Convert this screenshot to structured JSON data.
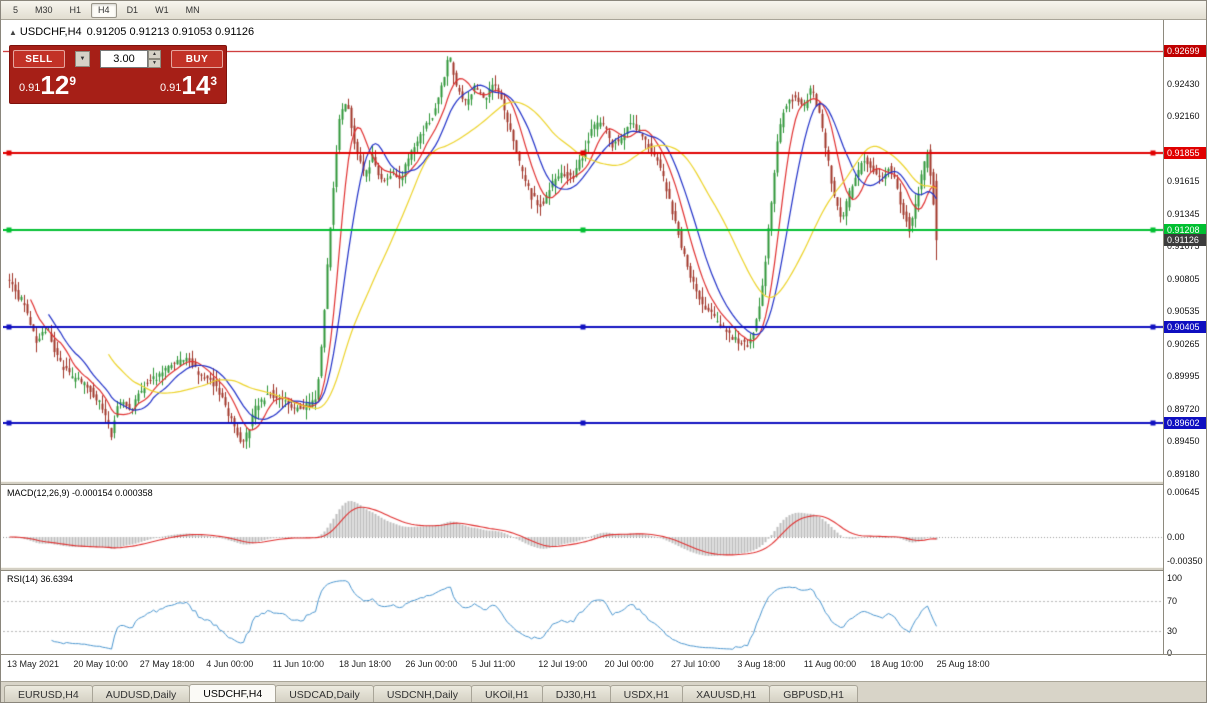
{
  "window": {
    "timeframes": [
      "5",
      "M30",
      "H1",
      "H4",
      "D1",
      "W1",
      "MN"
    ],
    "active_timeframe": "H4"
  },
  "chart": {
    "arrow": "▲",
    "symbol": "USDCHF,H4",
    "ohlc": "0.91205 0.91213 0.91053 0.91126"
  },
  "trade_panel": {
    "sell_label": "SELL",
    "buy_label": "BUY",
    "volume": "3.00",
    "dropdown_icon": "▼",
    "spin_up_icon": "▲",
    "spin_down_icon": "▼",
    "bid_prefix": "0.91",
    "bid_big": "12",
    "bid_sup": "9",
    "ask_prefix": "0.91",
    "ask_big": "14",
    "ask_sup": "3"
  },
  "chart_data": {
    "type": "candlestick",
    "symbol": "USDCHF",
    "timeframe": "H4",
    "bars": 310,
    "current_price_label": "0.91126",
    "candle_up_color": "#2f9638",
    "candle_down_color": "#a03428",
    "price_scale": {
      "top": 0.9296,
      "bottom": 0.8912,
      "ticks": [
        "0.92430",
        "0.92160",
        "0.91615",
        "0.91345",
        "0.91075",
        "0.90805",
        "0.90535",
        "0.90265",
        "0.89995",
        "0.89720",
        "0.89450",
        "0.89180"
      ]
    },
    "price_path": [
      [
        0.0,
        0.9082
      ],
      [
        0.01,
        0.9068
      ],
      [
        0.019,
        0.906
      ],
      [
        0.032,
        0.9028
      ],
      [
        0.043,
        0.904
      ],
      [
        0.056,
        0.9012
      ],
      [
        0.07,
        0.8998
      ],
      [
        0.086,
        0.8992
      ],
      [
        0.102,
        0.8975
      ],
      [
        0.113,
        0.895
      ],
      [
        0.12,
        0.898
      ],
      [
        0.134,
        0.8972
      ],
      [
        0.148,
        0.8992
      ],
      [
        0.161,
        0.8998
      ],
      [
        0.177,
        0.9008
      ],
      [
        0.194,
        0.9014
      ],
      [
        0.21,
        0.9
      ],
      [
        0.226,
        0.8992
      ],
      [
        0.242,
        0.8962
      ],
      [
        0.255,
        0.8942
      ],
      [
        0.267,
        0.8972
      ],
      [
        0.282,
        0.8986
      ],
      [
        0.296,
        0.8978
      ],
      [
        0.312,
        0.8972
      ],
      [
        0.326,
        0.8976
      ],
      [
        0.333,
        0.8982
      ],
      [
        0.34,
        0.903
      ],
      [
        0.346,
        0.91
      ],
      [
        0.353,
        0.917
      ],
      [
        0.358,
        0.9213
      ],
      [
        0.366,
        0.9228
      ],
      [
        0.374,
        0.9195
      ],
      [
        0.385,
        0.9165
      ],
      [
        0.394,
        0.9183
      ],
      [
        0.402,
        0.916
      ],
      [
        0.412,
        0.9168
      ],
      [
        0.425,
        0.9165
      ],
      [
        0.435,
        0.9185
      ],
      [
        0.446,
        0.92
      ],
      [
        0.459,
        0.9218
      ],
      [
        0.47,
        0.9245
      ],
      [
        0.476,
        0.9268
      ],
      [
        0.484,
        0.9242
      ],
      [
        0.492,
        0.9225
      ],
      [
        0.503,
        0.924
      ],
      [
        0.514,
        0.923
      ],
      [
        0.524,
        0.9245
      ],
      [
        0.532,
        0.9232
      ],
      [
        0.543,
        0.92
      ],
      [
        0.554,
        0.917
      ],
      [
        0.565,
        0.9148
      ],
      [
        0.575,
        0.9142
      ],
      [
        0.586,
        0.9158
      ],
      [
        0.597,
        0.917
      ],
      [
        0.608,
        0.9163
      ],
      [
        0.618,
        0.918
      ],
      [
        0.629,
        0.9205
      ],
      [
        0.64,
        0.9212
      ],
      [
        0.651,
        0.9192
      ],
      [
        0.661,
        0.9198
      ],
      [
        0.672,
        0.9212
      ],
      [
        0.683,
        0.92
      ],
      [
        0.694,
        0.9188
      ],
      [
        0.704,
        0.917
      ],
      [
        0.715,
        0.914
      ],
      [
        0.726,
        0.9108
      ],
      [
        0.737,
        0.908
      ],
      [
        0.747,
        0.9062
      ],
      [
        0.758,
        0.905
      ],
      [
        0.769,
        0.904
      ],
      [
        0.78,
        0.9032
      ],
      [
        0.79,
        0.9028
      ],
      [
        0.798,
        0.9026
      ],
      [
        0.806,
        0.9042
      ],
      [
        0.814,
        0.908
      ],
      [
        0.822,
        0.914
      ],
      [
        0.829,
        0.9195
      ],
      [
        0.837,
        0.9225
      ],
      [
        0.847,
        0.9232
      ],
      [
        0.857,
        0.9222
      ],
      [
        0.865,
        0.924
      ],
      [
        0.873,
        0.9222
      ],
      [
        0.882,
        0.9185
      ],
      [
        0.89,
        0.9148
      ],
      [
        0.898,
        0.9128
      ],
      [
        0.906,
        0.915
      ],
      [
        0.915,
        0.9168
      ],
      [
        0.923,
        0.918
      ],
      [
        0.931,
        0.917
      ],
      [
        0.94,
        0.9162
      ],
      [
        0.948,
        0.9175
      ],
      [
        0.956,
        0.916
      ],
      [
        0.963,
        0.914
      ],
      [
        0.971,
        0.9122
      ],
      [
        0.978,
        0.9145
      ],
      [
        0.986,
        0.9172
      ],
      [
        0.991,
        0.9188
      ],
      [
        0.998,
        0.9135
      ],
      [
        1.0,
        0.9113
      ]
    ],
    "moving_averages": [
      {
        "period": 8,
        "color": "#e03030"
      },
      {
        "period": 14,
        "color": "#2030c8"
      },
      {
        "period": 34,
        "color": "#ecd32a"
      }
    ],
    "horizontal_lines": [
      {
        "price": 0.92699,
        "label": "0.92699",
        "color": "#c00000",
        "width": 1,
        "handles": false
      },
      {
        "price": 0.91855,
        "label": "0.91855",
        "color": "#e00000",
        "width": 2,
        "handles": true
      },
      {
        "price": 0.91208,
        "label": "0.91208",
        "color": "#00bf30",
        "width": 2,
        "handles": true
      },
      {
        "price": 0.90405,
        "label": "0.90405",
        "color": "#0f0fc0",
        "width": 2,
        "handles": true
      },
      {
        "price": 0.89602,
        "label": "0.89602",
        "color": "#0f0fc0",
        "width": 2,
        "handles": true
      }
    ],
    "x_labels": [
      "13 May 2021",
      "20 May 10:00",
      "27 May 18:00",
      "4 Jun 00:00",
      "11 Jun 10:00",
      "18 Jun 18:00",
      "26 Jun 00:00",
      "5 Jul 11:00",
      "12 Jul 19:00",
      "20 Jul 00:00",
      "27 Jul 10:00",
      "3 Aug 18:00",
      "11 Aug 00:00",
      "18 Aug 10:00",
      "25 Aug 18:00"
    ],
    "indicators": [
      {
        "name": "MACD",
        "label": "MACD(12,26,9) -0.000154 0.000358",
        "axis": [
          "0.00645",
          "0.00",
          "-0.00350"
        ],
        "range": {
          "max": 0.00745,
          "min": -0.0043
        },
        "histogram_color": "#bdbdbd",
        "signal_color": "#e03030"
      },
      {
        "name": "RSI",
        "label": "RSI(14) 36.6394",
        "axis": [
          "100",
          "70",
          "30",
          "0"
        ],
        "levels": [
          70,
          30
        ],
        "line_color": "#4b96cf"
      }
    ]
  },
  "bottom_tabs": {
    "active": "USDCHF,H4",
    "tabs": [
      "EURUSD,H4",
      "AUDUSD,Daily",
      "USDCHF,H4",
      "USDCAD,Daily",
      "USDCNH,Daily",
      "UKOil,H1",
      "DJ30,H1",
      "USDX,H1",
      "XAUUSD,H1",
      "GBPUSD,H1"
    ]
  }
}
